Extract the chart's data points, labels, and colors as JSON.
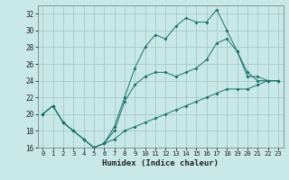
{
  "title": "",
  "xlabel": "Humidex (Indice chaleur)",
  "ylabel": "",
  "background_color": "#c8e8e8",
  "grid_color": "#a8c8c8",
  "line_color": "#1a7068",
  "x": [
    0,
    1,
    2,
    3,
    4,
    5,
    6,
    7,
    8,
    9,
    10,
    11,
    12,
    13,
    14,
    15,
    16,
    17,
    18,
    19,
    20,
    21,
    22,
    23
  ],
  "series1": [
    20,
    21,
    19,
    18,
    17,
    16,
    16.5,
    18.5,
    22,
    25.5,
    28,
    29.5,
    29,
    30.5,
    31.5,
    31,
    31,
    32.5,
    30,
    27.5,
    25,
    24,
    24,
    24
  ],
  "series2": [
    20,
    21,
    19,
    18,
    17,
    16,
    16.5,
    18,
    21.5,
    23.5,
    24.5,
    25,
    25,
    24.5,
    25,
    25.5,
    26.5,
    28.5,
    29,
    27.5,
    24.5,
    24.5,
    24,
    24
  ],
  "series3": [
    20,
    21,
    19,
    18,
    17,
    16,
    16.5,
    17,
    18,
    18.5,
    19,
    19.5,
    20,
    20.5,
    21,
    21.5,
    22,
    22.5,
    23,
    23,
    23,
    23.5,
    24,
    24
  ],
  "ylim": [
    16,
    33
  ],
  "xlim": [
    -0.5,
    23.5
  ],
  "yticks": [
    16,
    18,
    20,
    22,
    24,
    26,
    28,
    30,
    32
  ],
  "xticks": [
    0,
    1,
    2,
    3,
    4,
    5,
    6,
    7,
    8,
    9,
    10,
    11,
    12,
    13,
    14,
    15,
    16,
    17,
    18,
    19,
    20,
    21,
    22,
    23
  ]
}
